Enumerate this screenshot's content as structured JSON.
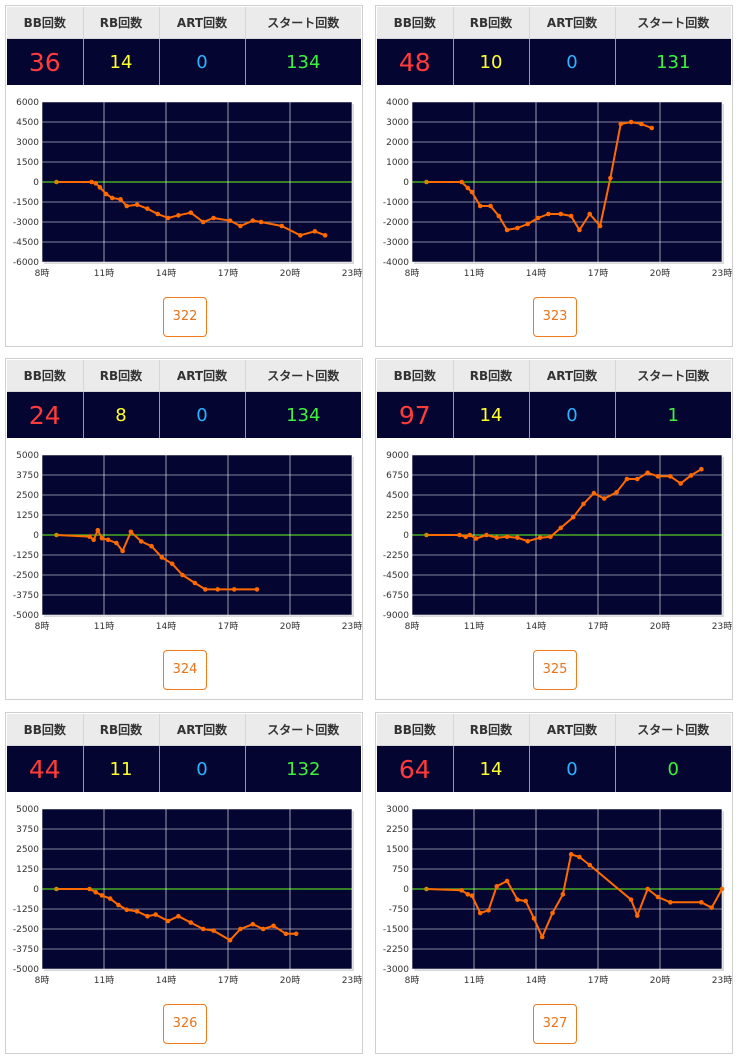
{
  "headers": {
    "bb": "BB回数",
    "rb": "RB回数",
    "art": "ART回数",
    "start": "スタート回数"
  },
  "x_ticks": [
    "8時",
    "11時",
    "14時",
    "17時",
    "20時",
    "23時"
  ],
  "colors": {
    "plot_bg": "#050532",
    "line": "#ff6a00",
    "zero_line": "#55cc22",
    "grid": "#ffffff",
    "bb": "#ff3b3b",
    "rb": "#ffff2a",
    "art": "#2ab4ff",
    "start": "#3cf23c",
    "button": "#e8731a"
  },
  "machines": [
    {
      "number": "322",
      "bb": "36",
      "rb": "14",
      "art": "0",
      "start": "134",
      "chart_data": {
        "type": "line",
        "x_range": [
          8,
          23
        ],
        "ylim": [
          -6000,
          6000
        ],
        "y_ticks": [
          "6000",
          "4500",
          "3000",
          "1500",
          "0",
          "-1500",
          "-3000",
          "-4500",
          "-6000"
        ],
        "points": [
          [
            8.7,
            0
          ],
          [
            10.4,
            0
          ],
          [
            10.6,
            -100
          ],
          [
            10.8,
            -400
          ],
          [
            11.1,
            -900
          ],
          [
            11.4,
            -1200
          ],
          [
            11.8,
            -1300
          ],
          [
            12.1,
            -1800
          ],
          [
            12.6,
            -1700
          ],
          [
            13.1,
            -2000
          ],
          [
            13.6,
            -2400
          ],
          [
            14.1,
            -2700
          ],
          [
            14.6,
            -2500
          ],
          [
            15.2,
            -2300
          ],
          [
            15.8,
            -3000
          ],
          [
            16.3,
            -2700
          ],
          [
            17.1,
            -2900
          ],
          [
            17.6,
            -3300
          ],
          [
            18.2,
            -2900
          ],
          [
            18.6,
            -3000
          ],
          [
            19.6,
            -3300
          ],
          [
            20.5,
            -4000
          ],
          [
            21.2,
            -3700
          ],
          [
            21.7,
            -4000
          ]
        ]
      }
    },
    {
      "number": "323",
      "bb": "48",
      "rb": "10",
      "art": "0",
      "start": "131",
      "chart_data": {
        "type": "line",
        "x_range": [
          8,
          23
        ],
        "ylim": [
          -4000,
          4000
        ],
        "y_ticks": [
          "4000",
          "3000",
          "2000",
          "1000",
          "0",
          "-1000",
          "-2000",
          "-3000",
          "-4000"
        ],
        "points": [
          [
            8.7,
            0
          ],
          [
            10.4,
            0
          ],
          [
            10.7,
            -300
          ],
          [
            10.9,
            -500
          ],
          [
            11.3,
            -1200
          ],
          [
            11.8,
            -1200
          ],
          [
            12.2,
            -1700
          ],
          [
            12.6,
            -2400
          ],
          [
            13.1,
            -2300
          ],
          [
            13.6,
            -2100
          ],
          [
            14.1,
            -1800
          ],
          [
            14.6,
            -1600
          ],
          [
            15.2,
            -1600
          ],
          [
            15.7,
            -1700
          ],
          [
            16.1,
            -2400
          ],
          [
            16.6,
            -1600
          ],
          [
            17.1,
            -2200
          ],
          [
            17.6,
            200
          ],
          [
            18.1,
            2900
          ],
          [
            18.6,
            3000
          ],
          [
            19.1,
            2900
          ],
          [
            19.6,
            2700
          ]
        ]
      }
    },
    {
      "number": "324",
      "bb": "24",
      "rb": "8",
      "art": "0",
      "start": "134",
      "chart_data": {
        "type": "line",
        "x_range": [
          8,
          23
        ],
        "ylim": [
          -5000,
          5000
        ],
        "y_ticks": [
          "5000",
          "3750",
          "2500",
          "1250",
          "0",
          "-1250",
          "-2500",
          "-3750",
          "-5000"
        ],
        "points": [
          [
            8.7,
            0
          ],
          [
            10.3,
            -100
          ],
          [
            10.5,
            -300
          ],
          [
            10.7,
            300
          ],
          [
            10.9,
            -200
          ],
          [
            11.2,
            -300
          ],
          [
            11.6,
            -500
          ],
          [
            11.9,
            -1000
          ],
          [
            12.3,
            200
          ],
          [
            12.8,
            -400
          ],
          [
            13.3,
            -700
          ],
          [
            13.8,
            -1400
          ],
          [
            14.3,
            -1800
          ],
          [
            14.8,
            -2500
          ],
          [
            15.4,
            -3000
          ],
          [
            15.9,
            -3400
          ],
          [
            16.5,
            -3400
          ],
          [
            17.3,
            -3400
          ],
          [
            18.4,
            -3400
          ]
        ]
      }
    },
    {
      "number": "325",
      "bb": "97",
      "rb": "14",
      "art": "0",
      "start": "1",
      "chart_data": {
        "type": "line",
        "x_range": [
          8,
          23
        ],
        "ylim": [
          -9000,
          9000
        ],
        "y_ticks": [
          "9000",
          "6750",
          "4500",
          "2250",
          "0",
          "-2250",
          "-4500",
          "-6750",
          "-9000"
        ],
        "points": [
          [
            8.7,
            0
          ],
          [
            10.3,
            0
          ],
          [
            10.6,
            -200
          ],
          [
            10.8,
            0
          ],
          [
            11.1,
            -400
          ],
          [
            11.6,
            0
          ],
          [
            12.1,
            -300
          ],
          [
            12.6,
            -200
          ],
          [
            13.1,
            -300
          ],
          [
            13.6,
            -700
          ],
          [
            14.2,
            -300
          ],
          [
            14.7,
            -200
          ],
          [
            15.2,
            800
          ],
          [
            15.8,
            2000
          ],
          [
            16.3,
            3500
          ],
          [
            16.8,
            4700
          ],
          [
            17.3,
            4100
          ],
          [
            17.9,
            4800
          ],
          [
            18.4,
            6300
          ],
          [
            18.9,
            6300
          ],
          [
            19.4,
            7000
          ],
          [
            19.9,
            6600
          ],
          [
            20.5,
            6600
          ],
          [
            21.0,
            5800
          ],
          [
            21.5,
            6700
          ],
          [
            22.0,
            7400
          ]
        ]
      }
    },
    {
      "number": "326",
      "bb": "44",
      "rb": "11",
      "art": "0",
      "start": "132",
      "chart_data": {
        "type": "line",
        "x_range": [
          8,
          23
        ],
        "ylim": [
          -5000,
          5000
        ],
        "y_ticks": [
          "5000",
          "3750",
          "2500",
          "1250",
          "0",
          "-1250",
          "-2500",
          "-3750",
          "-5000"
        ],
        "points": [
          [
            8.7,
            0
          ],
          [
            10.3,
            0
          ],
          [
            10.6,
            -200
          ],
          [
            10.9,
            -400
          ],
          [
            11.3,
            -600
          ],
          [
            11.7,
            -1000
          ],
          [
            12.1,
            -1300
          ],
          [
            12.6,
            -1400
          ],
          [
            13.1,
            -1700
          ],
          [
            13.5,
            -1600
          ],
          [
            14.1,
            -2000
          ],
          [
            14.6,
            -1700
          ],
          [
            15.2,
            -2100
          ],
          [
            15.8,
            -2500
          ],
          [
            16.3,
            -2600
          ],
          [
            17.1,
            -3200
          ],
          [
            17.6,
            -2500
          ],
          [
            18.2,
            -2200
          ],
          [
            18.7,
            -2500
          ],
          [
            19.2,
            -2300
          ],
          [
            19.8,
            -2800
          ],
          [
            20.3,
            -2800
          ]
        ]
      }
    },
    {
      "number": "327",
      "bb": "64",
      "rb": "14",
      "art": "0",
      "start": "0",
      "chart_data": {
        "type": "line",
        "x_range": [
          8,
          23
        ],
        "ylim": [
          -3000,
          3000
        ],
        "y_ticks": [
          "3000",
          "2250",
          "1500",
          "750",
          "0",
          "-750",
          "-1500",
          "-2250",
          "-3000"
        ],
        "points": [
          [
            8.7,
            0
          ],
          [
            10.4,
            -50
          ],
          [
            10.7,
            -200
          ],
          [
            10.9,
            -250
          ],
          [
            11.3,
            -900
          ],
          [
            11.7,
            -800
          ],
          [
            12.1,
            100
          ],
          [
            12.6,
            300
          ],
          [
            13.1,
            -400
          ],
          [
            13.5,
            -450
          ],
          [
            13.9,
            -1100
          ],
          [
            14.3,
            -1800
          ],
          [
            14.8,
            -900
          ],
          [
            15.3,
            -200
          ],
          [
            15.7,
            1300
          ],
          [
            16.1,
            1200
          ],
          [
            16.6,
            900
          ],
          [
            18.6,
            -400
          ],
          [
            18.9,
            -1000
          ],
          [
            19.4,
            0
          ],
          [
            19.9,
            -300
          ],
          [
            20.5,
            -500
          ],
          [
            22.0,
            -500
          ],
          [
            22.5,
            -700
          ],
          [
            23.0,
            0
          ]
        ]
      }
    }
  ]
}
